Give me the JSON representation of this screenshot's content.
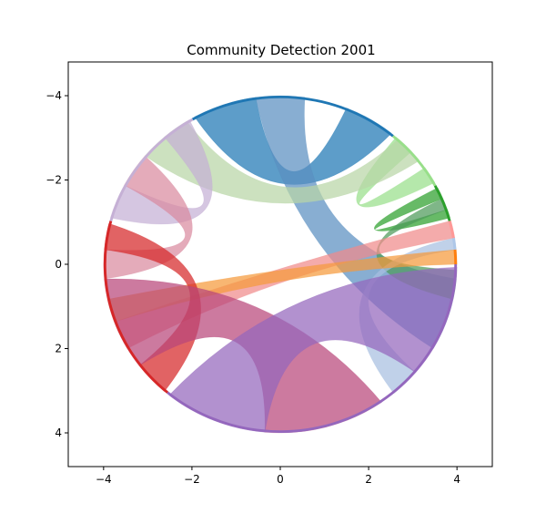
{
  "chart_data": {
    "type": "chord",
    "title": "Community Detection 2001",
    "xlabel": "",
    "ylabel": "",
    "xlim": [
      -4.8,
      4.8
    ],
    "ylim": [
      4.8,
      -4.8
    ],
    "y_inverted": true,
    "grid": false,
    "legend": "none",
    "xticks": [
      {
        "value": -4,
        "label": "−4"
      },
      {
        "value": -2,
        "label": "−2"
      },
      {
        "value": 0,
        "label": "0"
      },
      {
        "value": 2,
        "label": "2"
      },
      {
        "value": 4,
        "label": "4"
      }
    ],
    "yticks": [
      {
        "value": -4,
        "label": "−4"
      },
      {
        "value": -2,
        "label": "−2"
      },
      {
        "value": 0,
        "label": "0"
      },
      {
        "value": 2,
        "label": "2"
      },
      {
        "value": 4,
        "label": "4"
      }
    ],
    "radius": 4,
    "arcs": [
      {
        "community": "blue",
        "color": "#1f77b4",
        "start_deg": 240,
        "end_deg": 310
      },
      {
        "community": "light-green",
        "color": "#98df8a",
        "start_deg": 310,
        "end_deg": 332
      },
      {
        "community": "green",
        "color": "#2ca02c",
        "start_deg": 332,
        "end_deg": 345
      },
      {
        "community": "pink",
        "color": "#ff9896",
        "start_deg": 345,
        "end_deg": 351
      },
      {
        "community": "light-blue",
        "color": "#aec7e8",
        "start_deg": 351,
        "end_deg": 355
      },
      {
        "community": "orange",
        "color": "#ff7f0e",
        "start_deg": 355,
        "end_deg": 360
      },
      {
        "community": "purple",
        "color": "#9467bd",
        "start_deg": 0,
        "end_deg": 130
      },
      {
        "community": "red",
        "color": "#d62728",
        "start_deg": 130,
        "end_deg": 195
      },
      {
        "community": "lavender",
        "color": "#c5b0d5",
        "start_deg": 195,
        "end_deg": 240
      }
    ],
    "ribbons": [
      {
        "from": "blue",
        "to": "blue",
        "color": "#1f77b4",
        "from_range": [
          241,
          262
        ],
        "to_range": [
          292,
          309
        ]
      },
      {
        "from": "blue",
        "to": "purple",
        "color": "#5a8fc0",
        "from_range": [
          262,
          278
        ],
        "to_range": [
          5,
          30
        ]
      },
      {
        "from": "light-green",
        "to": "light-green",
        "color": "#98df8a",
        "from_range": [
          311,
          318
        ],
        "to_range": [
          325,
          331
        ]
      },
      {
        "from": "lavender",
        "to": "light-green",
        "color": "#b8d6a6",
        "from_range": [
          220,
          238
        ],
        "to_range": [
          312,
          322
        ]
      },
      {
        "from": "green",
        "to": "green",
        "color": "#2ca02c",
        "from_range": [
          333,
          337
        ],
        "to_range": [
          341,
          344
        ]
      },
      {
        "from": "green",
        "to": "purple",
        "color": "#4d9a5a",
        "from_range": [
          337,
          341
        ],
        "to_range": [
          2,
          12
        ]
      },
      {
        "from": "pink",
        "to": "red",
        "color": "#f08a8a",
        "from_range": [
          345,
          351
        ],
        "to_range": [
          150,
          160
        ]
      },
      {
        "from": "light-blue",
        "to": "purple",
        "color": "#a8bfe0",
        "from_range": [
          351,
          355
        ],
        "to_range": [
          40,
          50
        ]
      },
      {
        "from": "orange",
        "to": "red",
        "color": "#f59a3c",
        "from_range": [
          355,
          360
        ],
        "to_range": [
          160,
          168
        ]
      },
      {
        "from": "lavender",
        "to": "lavender",
        "color": "#c5b0d5",
        "from_range": [
          196,
          208
        ],
        "to_range": [
          229,
          239
        ]
      },
      {
        "from": "lavender",
        "to": "red",
        "color": "#d98aa0",
        "from_range": [
          208,
          220
        ],
        "to_range": [
          175,
          185
        ]
      },
      {
        "from": "red",
        "to": "red",
        "color": "#d62728",
        "from_range": [
          131,
          143
        ],
        "to_range": [
          185,
          194
        ]
      },
      {
        "from": "red",
        "to": "purple",
        "color": "#b8477a",
        "from_range": [
          143,
          175
        ],
        "to_range": [
          55,
          95
        ]
      },
      {
        "from": "purple",
        "to": "purple",
        "color": "#9467bd",
        "from_range": [
          95,
          129
        ],
        "to_range": [
          1,
          40
        ]
      }
    ]
  }
}
